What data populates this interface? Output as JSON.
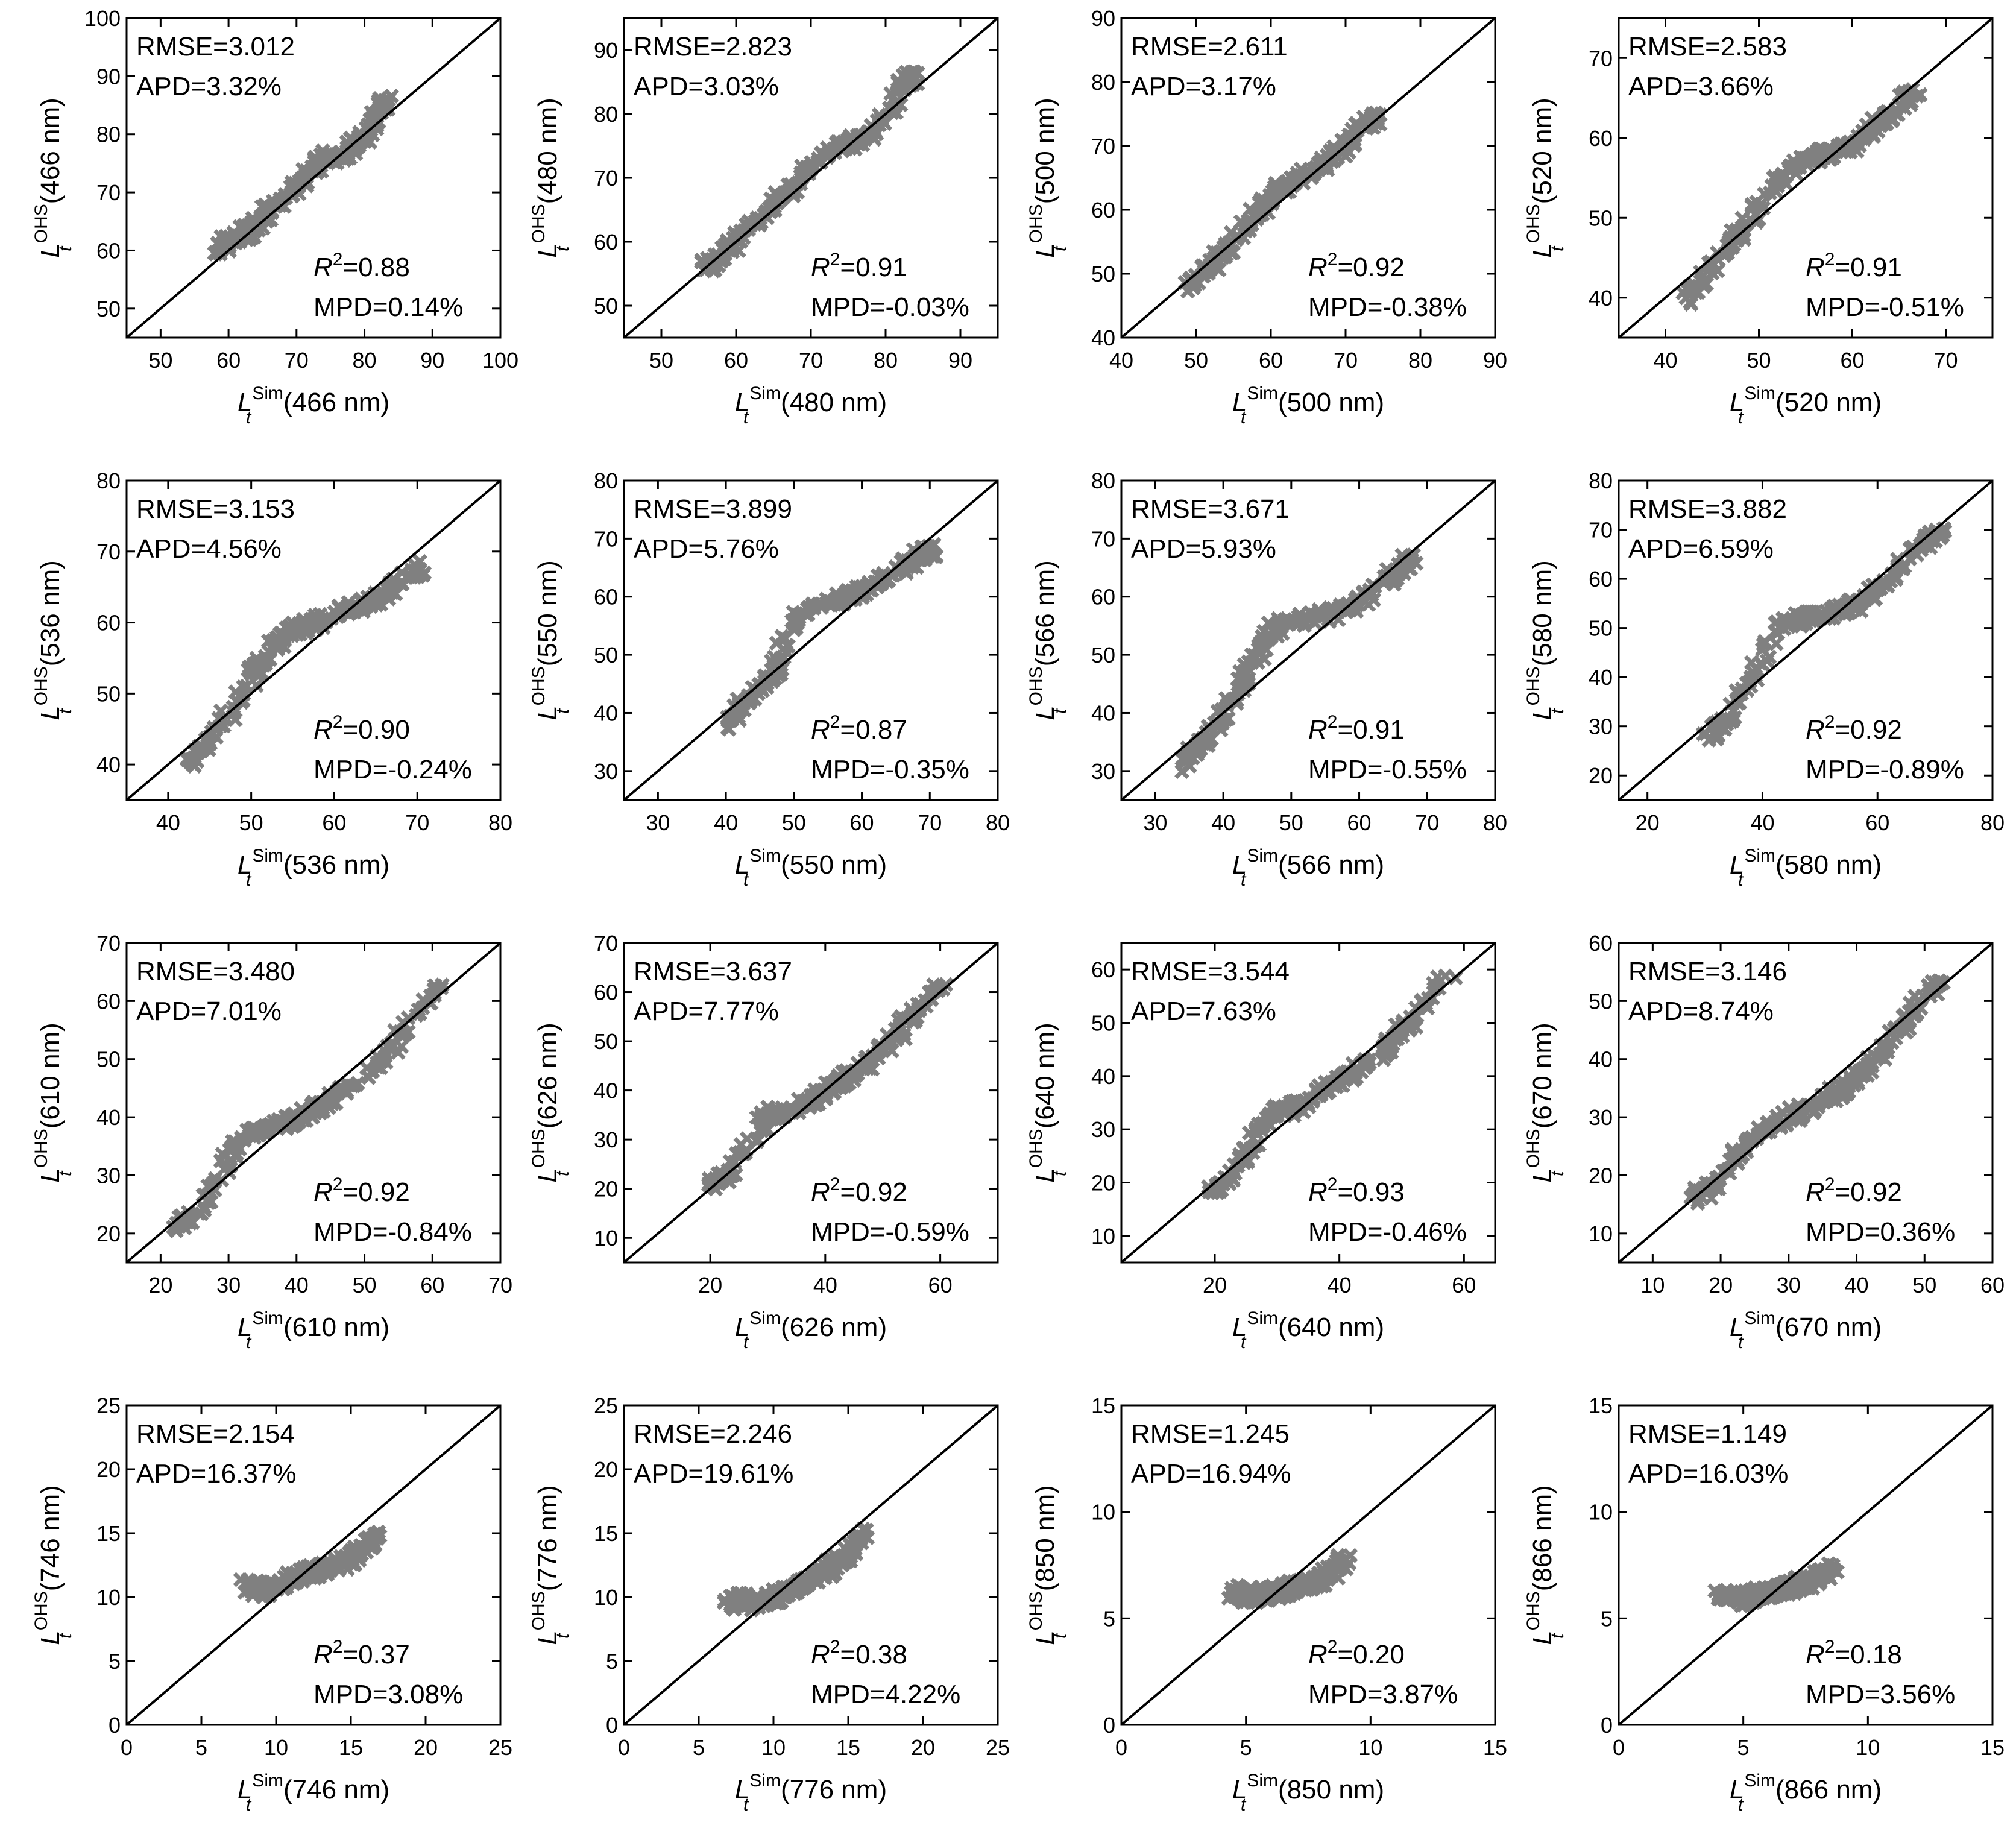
{
  "figure": {
    "panel_count": 16,
    "marker_color": "#808080",
    "line_color": "#000000",
    "axis_color": "#000000"
  },
  "chart_data": [
    {
      "type": "scatter",
      "band": "466 nm",
      "xlabel_main": "L",
      "xlabel_sub": "t",
      "xlabel_sup": "Sim",
      "xlabel_suffix": "(466 nm)",
      "ylabel_main": "L",
      "ylabel_sub": "t",
      "ylabel_sup": "OHS",
      "ylabel_suffix": "(466 nm)",
      "xlim": [
        45,
        100
      ],
      "ylim": [
        45,
        100
      ],
      "xticks": [
        50,
        60,
        70,
        80,
        90,
        100
      ],
      "yticks": [
        50,
        60,
        70,
        80,
        90,
        100
      ],
      "rmse": "RMSE=3.012",
      "apd": "APD=3.32%",
      "r2": "=0.88",
      "mpd": "MPD=0.14%",
      "cluster": [
        [
          58,
          60
        ],
        [
          61,
          62
        ],
        [
          64,
          64
        ],
        [
          66,
          67
        ],
        [
          70,
          71
        ],
        [
          72,
          73
        ],
        [
          74,
          76
        ],
        [
          77,
          76
        ],
        [
          80,
          80
        ],
        [
          82,
          84
        ],
        [
          84,
          86
        ]
      ]
    },
    {
      "type": "scatter",
      "band": "480 nm",
      "xlabel_main": "L",
      "xlabel_sub": "t",
      "xlabel_sup": "Sim",
      "xlabel_suffix": "(480 nm)",
      "ylabel_main": "L",
      "ylabel_sub": "t",
      "ylabel_sup": "OHS",
      "ylabel_suffix": "(480 nm)",
      "xlim": [
        45,
        95
      ],
      "ylim": [
        45,
        95
      ],
      "xticks": [
        50,
        60,
        70,
        80,
        90
      ],
      "yticks": [
        50,
        60,
        70,
        80,
        90
      ],
      "rmse": "RMSE=2.823",
      "apd": "APD=3.03%",
      "r2": "=0.91",
      "mpd": "MPD=-0.03%",
      "cluster": [
        [
          56,
          56
        ],
        [
          59,
          59
        ],
        [
          62,
          62
        ],
        [
          65,
          66
        ],
        [
          68,
          69
        ],
        [
          71,
          73
        ],
        [
          74,
          75
        ],
        [
          77,
          76
        ],
        [
          80,
          79
        ],
        [
          82,
          84
        ],
        [
          84,
          86
        ]
      ]
    },
    {
      "type": "scatter",
      "band": "500 nm",
      "xlabel_main": "L",
      "xlabel_sub": "t",
      "xlabel_sup": "Sim",
      "xlabel_suffix": "(500 nm)",
      "ylabel_main": "L",
      "ylabel_sub": "t",
      "ylabel_sup": "OHS",
      "ylabel_suffix": "(500 nm)",
      "xlim": [
        40,
        90
      ],
      "ylim": [
        40,
        90
      ],
      "xticks": [
        40,
        50,
        60,
        70,
        80,
        90
      ],
      "yticks": [
        40,
        50,
        60,
        70,
        80,
        90
      ],
      "rmse": "RMSE=2.611",
      "apd": "APD=3.17%",
      "r2": "=0.92",
      "mpd": "MPD=-0.38%",
      "cluster": [
        [
          49,
          48
        ],
        [
          52,
          51
        ],
        [
          55,
          55
        ],
        [
          58,
          59
        ],
        [
          61,
          63
        ],
        [
          64,
          65
        ],
        [
          67,
          67
        ],
        [
          70,
          70
        ],
        [
          72,
          73
        ],
        [
          75,
          75
        ]
      ]
    },
    {
      "type": "scatter",
      "band": "520 nm",
      "xlabel_main": "L",
      "xlabel_sub": "t",
      "xlabel_sup": "Sim",
      "xlabel_suffix": "(520 nm)",
      "ylabel_main": "L",
      "ylabel_sub": "t",
      "ylabel_sup": "OHS",
      "ylabel_suffix": "(520 nm)",
      "xlim": [
        35,
        75
      ],
      "ylim": [
        35,
        75
      ],
      "xticks": [
        40,
        50,
        60,
        70
      ],
      "yticks": [
        40,
        50,
        60,
        70
      ],
      "rmse": "RMSE=2.583",
      "apd": "APD=3.66%",
      "r2": "=0.91",
      "mpd": "MPD=-0.51%",
      "cluster": [
        [
          42,
          40
        ],
        [
          45,
          44
        ],
        [
          48,
          48
        ],
        [
          51,
          53
        ],
        [
          54,
          57
        ],
        [
          57,
          58
        ],
        [
          60,
          59
        ],
        [
          63,
          62
        ],
        [
          65,
          64
        ],
        [
          67,
          66
        ]
      ]
    },
    {
      "type": "scatter",
      "band": "536 nm",
      "xlabel_main": "L",
      "xlabel_sub": "t",
      "xlabel_sup": "Sim",
      "xlabel_suffix": "(536 nm)",
      "ylabel_main": "L",
      "ylabel_sub": "t",
      "ylabel_sup": "OHS",
      "ylabel_suffix": "(536 nm)",
      "xlim": [
        35,
        80
      ],
      "ylim": [
        35,
        80
      ],
      "xticks": [
        40,
        50,
        60,
        70,
        80
      ],
      "yticks": [
        40,
        50,
        60,
        70,
        80
      ],
      "rmse": "RMSE=3.153",
      "apd": "APD=4.56%",
      "r2": "=0.90",
      "mpd": "MPD=-0.24%",
      "cluster": [
        [
          42,
          40
        ],
        [
          45,
          43
        ],
        [
          49,
          50
        ],
        [
          52,
          56
        ],
        [
          55,
          59
        ],
        [
          58,
          60
        ],
        [
          62,
          62
        ],
        [
          65,
          63
        ],
        [
          68,
          66
        ],
        [
          71,
          68
        ]
      ]
    },
    {
      "type": "scatter",
      "band": "550 nm",
      "xlabel_main": "L",
      "xlabel_sub": "t",
      "xlabel_sup": "Sim",
      "xlabel_suffix": "(550 nm)",
      "ylabel_main": "L",
      "ylabel_sub": "t",
      "ylabel_sup": "OHS",
      "ylabel_suffix": "(550 nm)",
      "xlim": [
        25,
        80
      ],
      "ylim": [
        25,
        80
      ],
      "xticks": [
        30,
        40,
        50,
        60,
        70,
        80
      ],
      "yticks": [
        30,
        40,
        50,
        60,
        70,
        80
      ],
      "rmse": "RMSE=3.899",
      "apd": "APD=5.76%",
      "r2": "=0.87",
      "mpd": "MPD=-0.35%",
      "cluster": [
        [
          40,
          38
        ],
        [
          43,
          42
        ],
        [
          47,
          47
        ],
        [
          50,
          56
        ],
        [
          54,
          59
        ],
        [
          58,
          60
        ],
        [
          62,
          62
        ],
        [
          65,
          64
        ],
        [
          68,
          67
        ],
        [
          71,
          68
        ]
      ]
    },
    {
      "type": "scatter",
      "band": "566 nm",
      "xlabel_main": "L",
      "xlabel_sub": "t",
      "xlabel_sup": "Sim",
      "xlabel_suffix": "(566 nm)",
      "ylabel_main": "L",
      "ylabel_sub": "t",
      "ylabel_sup": "OHS",
      "ylabel_suffix": "(566 nm)",
      "xlim": [
        25,
        80
      ],
      "ylim": [
        25,
        80
      ],
      "xticks": [
        30,
        40,
        50,
        60,
        70,
        80
      ],
      "yticks": [
        30,
        40,
        50,
        60,
        70,
        80
      ],
      "rmse": "RMSE=3.671",
      "apd": "APD=5.93%",
      "r2": "=0.91",
      "mpd": "MPD=-0.55%",
      "cluster": [
        [
          34,
          31
        ],
        [
          37,
          35
        ],
        [
          41,
          41
        ],
        [
          45,
          50
        ],
        [
          48,
          55
        ],
        [
          52,
          56
        ],
        [
          56,
          57
        ],
        [
          60,
          59
        ],
        [
          64,
          63
        ],
        [
          68,
          67
        ]
      ]
    },
    {
      "type": "scatter",
      "band": "580 nm",
      "xlabel_main": "L",
      "xlabel_sub": "t",
      "xlabel_sup": "Sim",
      "xlabel_suffix": "(580 nm)",
      "ylabel_main": "L",
      "ylabel_sub": "t",
      "ylabel_sup": "OHS",
      "ylabel_suffix": "(580 nm)",
      "xlim": [
        15,
        80
      ],
      "ylim": [
        15,
        80
      ],
      "xticks": [
        20,
        40,
        60,
        80
      ],
      "yticks": [
        20,
        30,
        40,
        50,
        60,
        70,
        80
      ],
      "rmse": "RMSE=3.882",
      "apd": "APD=6.59%",
      "r2": "=0.92",
      "mpd": "MPD=-0.89%",
      "cluster": [
        [
          30,
          28
        ],
        [
          34,
          31
        ],
        [
          38,
          40
        ],
        [
          42,
          50
        ],
        [
          47,
          52
        ],
        [
          52,
          53
        ],
        [
          57,
          55
        ],
        [
          62,
          60
        ],
        [
          67,
          66
        ],
        [
          71,
          70
        ]
      ]
    },
    {
      "type": "scatter",
      "band": "610 nm",
      "xlabel_main": "L",
      "xlabel_sub": "t",
      "xlabel_sup": "Sim",
      "xlabel_suffix": "(610 nm)",
      "ylabel_main": "L",
      "ylabel_sub": "t",
      "ylabel_sup": "OHS",
      "ylabel_suffix": "(610 nm)",
      "xlim": [
        15,
        70
      ],
      "ylim": [
        15,
        70
      ],
      "xticks": [
        20,
        30,
        40,
        50,
        60,
        70
      ],
      "yticks": [
        20,
        30,
        40,
        50,
        60,
        70
      ],
      "rmse": "RMSE=3.480",
      "apd": "APD=7.01%",
      "r2": "=0.92",
      "mpd": "MPD=-0.84%",
      "cluster": [
        [
          22,
          21
        ],
        [
          25,
          23
        ],
        [
          29,
          30
        ],
        [
          32,
          37
        ],
        [
          36,
          38
        ],
        [
          40,
          40
        ],
        [
          44,
          42
        ],
        [
          48,
          45
        ],
        [
          52,
          49
        ],
        [
          56,
          55
        ],
        [
          61,
          63
        ]
      ]
    },
    {
      "type": "scatter",
      "band": "626 nm",
      "xlabel_main": "L",
      "xlabel_sub": "t",
      "xlabel_sup": "Sim",
      "xlabel_suffix": "(626 nm)",
      "ylabel_main": "L",
      "ylabel_sub": "t",
      "ylabel_sup": "OHS",
      "ylabel_suffix": "(626 nm)",
      "xlim": [
        5,
        70
      ],
      "ylim": [
        5,
        70
      ],
      "xticks": [
        20,
        40,
        60
      ],
      "yticks": [
        10,
        20,
        30,
        40,
        50,
        60,
        70
      ],
      "rmse": "RMSE=3.637",
      "apd": "APD=7.77%",
      "r2": "=0.92",
      "mpd": "MPD=-0.59%",
      "cluster": [
        [
          20,
          20
        ],
        [
          23,
          22
        ],
        [
          27,
          30
        ],
        [
          30,
          35
        ],
        [
          34,
          36
        ],
        [
          38,
          38
        ],
        [
          42,
          41
        ],
        [
          46,
          44
        ],
        [
          50,
          48
        ],
        [
          55,
          55
        ],
        [
          60,
          62
        ]
      ]
    },
    {
      "type": "scatter",
      "band": "640 nm",
      "xlabel_main": "L",
      "xlabel_sub": "t",
      "xlabel_sup": "Sim",
      "xlabel_suffix": "(640 nm)",
      "ylabel_main": "L",
      "ylabel_sub": "t",
      "ylabel_sup": "OHS",
      "ylabel_suffix": "(640 nm)",
      "xlim": [
        5,
        65
      ],
      "ylim": [
        5,
        65
      ],
      "xticks": [
        20,
        40,
        60
      ],
      "yticks": [
        10,
        20,
        30,
        40,
        50,
        60
      ],
      "rmse": "RMSE=3.544",
      "apd": "APD=7.63%",
      "r2": "=0.93",
      "mpd": "MPD=-0.46%",
      "cluster": [
        [
          19,
          18
        ],
        [
          22,
          20
        ],
        [
          26,
          28
        ],
        [
          29,
          33
        ],
        [
          33,
          34
        ],
        [
          37,
          37
        ],
        [
          41,
          40
        ],
        [
          45,
          43
        ],
        [
          49,
          47
        ],
        [
          53,
          52
        ],
        [
          58,
          60
        ]
      ]
    },
    {
      "type": "scatter",
      "band": "670 nm",
      "xlabel_main": "L",
      "xlabel_sub": "t",
      "xlabel_sup": "Sim",
      "xlabel_suffix": "(670 nm)",
      "ylabel_main": "L",
      "ylabel_sub": "t",
      "ylabel_sup": "OHS",
      "ylabel_suffix": "(670 nm)",
      "xlim": [
        5,
        60
      ],
      "ylim": [
        5,
        60
      ],
      "xticks": [
        10,
        20,
        30,
        40,
        50,
        60
      ],
      "yticks": [
        10,
        20,
        30,
        40,
        50,
        60
      ],
      "rmse": "RMSE=3.146",
      "apd": "APD=8.74%",
      "r2": "=0.92",
      "mpd": "MPD=0.36%",
      "cluster": [
        [
          16,
          16
        ],
        [
          19,
          18
        ],
        [
          22,
          23
        ],
        [
          25,
          27
        ],
        [
          28,
          29
        ],
        [
          32,
          31
        ],
        [
          36,
          33
        ],
        [
          40,
          37
        ],
        [
          44,
          42
        ],
        [
          48,
          48
        ],
        [
          53,
          55
        ]
      ]
    },
    {
      "type": "scatter",
      "band": "746 nm",
      "xlabel_main": "L",
      "xlabel_sub": "t",
      "xlabel_sup": "Sim",
      "xlabel_suffix": "(746 nm)",
      "ylabel_main": "L",
      "ylabel_sub": "t",
      "ylabel_sup": "OHS",
      "ylabel_suffix": "(746 nm)",
      "xlim": [
        0,
        25
      ],
      "ylim": [
        0,
        25
      ],
      "xticks": [
        0,
        5,
        10,
        15,
        20,
        25
      ],
      "yticks": [
        0,
        5,
        10,
        15,
        20,
        25
      ],
      "rmse": "RMSE=2.154",
      "apd": "APD=16.37%",
      "r2": "=0.37",
      "mpd": "MPD=3.08%",
      "cluster": [
        [
          8,
          11
        ],
        [
          9,
          10.5
        ],
        [
          10,
          11
        ],
        [
          11,
          11.5
        ],
        [
          12,
          12
        ],
        [
          13,
          12
        ],
        [
          14,
          12.5
        ],
        [
          15,
          13
        ],
        [
          16,
          14
        ],
        [
          17,
          15.5
        ]
      ]
    },
    {
      "type": "scatter",
      "band": "776 nm",
      "xlabel_main": "L",
      "xlabel_sub": "t",
      "xlabel_sup": "Sim",
      "xlabel_suffix": "(776 nm)",
      "ylabel_main": "L",
      "ylabel_sub": "t",
      "ylabel_sup": "OHS",
      "ylabel_suffix": "(776 nm)",
      "xlim": [
        0,
        25
      ],
      "ylim": [
        0,
        25
      ],
      "xticks": [
        0,
        5,
        10,
        15,
        20,
        25
      ],
      "yticks": [
        0,
        5,
        10,
        15,
        20,
        25
      ],
      "rmse": "RMSE=2.246",
      "apd": "APD=19.61%",
      "r2": "=0.38",
      "mpd": "MPD=4.22%",
      "cluster": [
        [
          7,
          9.5
        ],
        [
          8,
          10
        ],
        [
          9,
          9.5
        ],
        [
          10,
          10
        ],
        [
          11,
          10.5
        ],
        [
          12,
          11
        ],
        [
          13,
          11.5
        ],
        [
          14,
          12.5
        ],
        [
          15,
          13.5
        ],
        [
          16,
          15
        ]
      ]
    },
    {
      "type": "scatter",
      "band": "850 nm",
      "xlabel_main": "L",
      "xlabel_sub": "t",
      "xlabel_sup": "Sim",
      "xlabel_suffix": "(850 nm)",
      "ylabel_main": "L",
      "ylabel_sub": "t",
      "ylabel_sup": "OHS",
      "ylabel_suffix": "(850 nm)",
      "xlim": [
        0,
        15
      ],
      "ylim": [
        0,
        15
      ],
      "xticks": [
        0,
        5,
        10,
        15
      ],
      "yticks": [
        0,
        5,
        10,
        15
      ],
      "rmse": "RMSE=1.245",
      "apd": "APD=16.94%",
      "r2": "=0.20",
      "mpd": "MPD=3.87%",
      "cluster": [
        [
          4.5,
          6.3
        ],
        [
          5,
          6
        ],
        [
          5.5,
          6.2
        ],
        [
          6,
          6.1
        ],
        [
          6.5,
          6.3
        ],
        [
          7,
          6.5
        ],
        [
          7.5,
          6.6
        ],
        [
          8,
          6.8
        ],
        [
          8.5,
          7.2
        ],
        [
          9,
          7.8
        ]
      ]
    },
    {
      "type": "scatter",
      "band": "866 nm",
      "xlabel_main": "L",
      "xlabel_sub": "t",
      "xlabel_sup": "Sim",
      "xlabel_suffix": "(866 nm)",
      "ylabel_main": "L",
      "ylabel_sub": "t",
      "ylabel_sup": "OHS",
      "ylabel_suffix": "(866 nm)",
      "xlim": [
        0,
        15
      ],
      "ylim": [
        0,
        15
      ],
      "xticks": [
        0,
        5,
        10,
        15
      ],
      "yticks": [
        0,
        5,
        10,
        15
      ],
      "rmse": "RMSE=1.149",
      "apd": "APD=16.03%",
      "r2": "=0.18",
      "mpd": "MPD=3.56%",
      "cluster": [
        [
          4,
          6.2
        ],
        [
          4.5,
          6
        ],
        [
          5,
          5.9
        ],
        [
          5.5,
          6.1
        ],
        [
          6,
          6.2
        ],
        [
          6.5,
          6.4
        ],
        [
          7,
          6.5
        ],
        [
          7.5,
          6.7
        ],
        [
          8,
          7
        ],
        [
          8.7,
          7.4
        ]
      ]
    }
  ]
}
